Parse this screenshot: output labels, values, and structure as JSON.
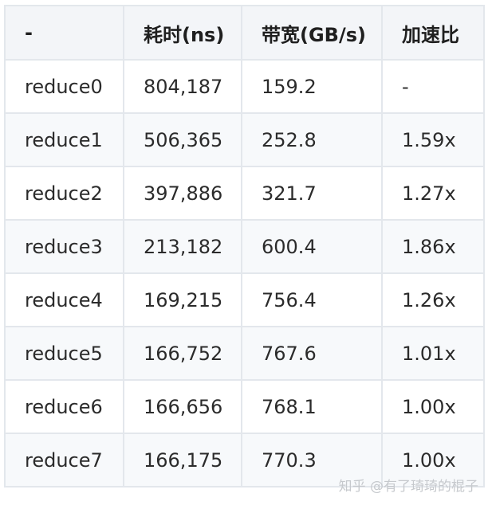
{
  "table": {
    "headers": [
      "-",
      "耗时(ns)",
      "带宽(GB/s)",
      "加速比"
    ],
    "rows": [
      [
        "reduce0",
        "804,187",
        "159.2",
        "-"
      ],
      [
        "reduce1",
        "506,365",
        "252.8",
        "1.59x"
      ],
      [
        "reduce2",
        "397,886",
        "321.7",
        "1.27x"
      ],
      [
        "reduce3",
        "213,182",
        "600.4",
        "1.86x"
      ],
      [
        "reduce4",
        "169,215",
        "756.4",
        "1.26x"
      ],
      [
        "reduce5",
        "166,752",
        "767.6",
        "1.01x"
      ],
      [
        "reduce6",
        "166,656",
        "768.1",
        "1.00x"
      ],
      [
        "reduce7",
        "166,175",
        "770.3",
        "1.00x"
      ]
    ]
  },
  "watermark": "知乎 @有了琦琦的棍子"
}
